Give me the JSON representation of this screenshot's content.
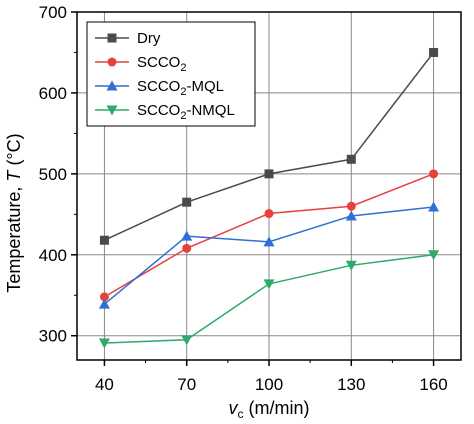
{
  "chart_data": {
    "type": "line",
    "x": [
      40,
      70,
      100,
      130,
      160
    ],
    "xlabel_base": "v",
    "xlabel_sub": "c",
    "xlabel_unit": " (m/min)",
    "ylabel_prefix": "Temperature, ",
    "ylabel_var": "T",
    "ylabel_unit": " (°C)",
    "ylim": [
      270,
      700
    ],
    "yticks": [
      300,
      400,
      500,
      600,
      700
    ],
    "xticks": [
      40,
      70,
      100,
      130,
      160
    ],
    "grid": true,
    "legend_position": "top-left",
    "series": [
      {
        "name": "Dry",
        "name_parts": [
          "Dry"
        ],
        "color": "#4a4a4a",
        "marker": "square",
        "values": [
          418,
          465,
          500,
          518,
          650
        ]
      },
      {
        "name": "SCCO2",
        "name_parts": [
          "SCCO",
          "2",
          ""
        ],
        "color": "#e8413c",
        "marker": "circle",
        "values": [
          348,
          408,
          451,
          460,
          500
        ]
      },
      {
        "name": "SCCO2-MQL",
        "name_parts": [
          "SCCO",
          "2",
          "-MQL"
        ],
        "color": "#2f6fd6",
        "marker": "triangle-up",
        "values": [
          339,
          423,
          416,
          448,
          459
        ]
      },
      {
        "name": "SCCO2-NMQL",
        "name_parts": [
          "SCCO",
          "2",
          "-NMQL"
        ],
        "color": "#2eaa6a",
        "marker": "triangle-down",
        "values": [
          291,
          295,
          364,
          387,
          400
        ]
      }
    ]
  }
}
